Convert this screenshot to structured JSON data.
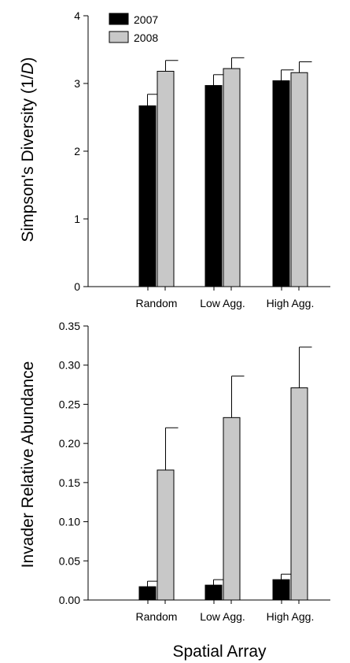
{
  "colors": {
    "series_2007": "#000000",
    "series_2008": "#c8c8c8",
    "axis": "#000000"
  },
  "legend": {
    "placement": "top-left"
  },
  "shared_xlabel": "Spatial Array",
  "chart_data": [
    {
      "type": "bar",
      "categories": [
        "Random",
        "Low Agg.",
        "High Agg."
      ],
      "series": [
        {
          "name": "2007",
          "values": [
            2.67,
            2.97,
            3.04
          ],
          "errors": [
            0.17,
            0.16,
            0.16
          ]
        },
        {
          "name": "2008",
          "values": [
            3.18,
            3.22,
            3.16
          ],
          "errors": [
            0.16,
            0.16,
            0.16
          ]
        }
      ],
      "ylabel_prefix": "Simpson's Diversity (1/",
      "ylabel_italic": "D",
      "ylabel_suffix": ")",
      "ylim": [
        0,
        4
      ],
      "yticks": [
        "0",
        "1",
        "2",
        "3",
        "4"
      ],
      "grid": false
    },
    {
      "type": "bar",
      "categories": [
        "Random",
        "Low Agg.",
        "High Agg."
      ],
      "series": [
        {
          "name": "2007",
          "values": [
            0.017,
            0.019,
            0.026
          ],
          "errors": [
            0.007,
            0.007,
            0.007
          ]
        },
        {
          "name": "2008",
          "values": [
            0.166,
            0.233,
            0.271
          ],
          "errors": [
            0.054,
            0.053,
            0.052
          ]
        }
      ],
      "ylabel": "Invader Relative Abundance",
      "ylim": [
        0,
        0.35
      ],
      "yticks": [
        "0.00",
        "0.05",
        "0.10",
        "0.15",
        "0.20",
        "0.25",
        "0.30",
        "0.35"
      ],
      "grid": false
    }
  ]
}
